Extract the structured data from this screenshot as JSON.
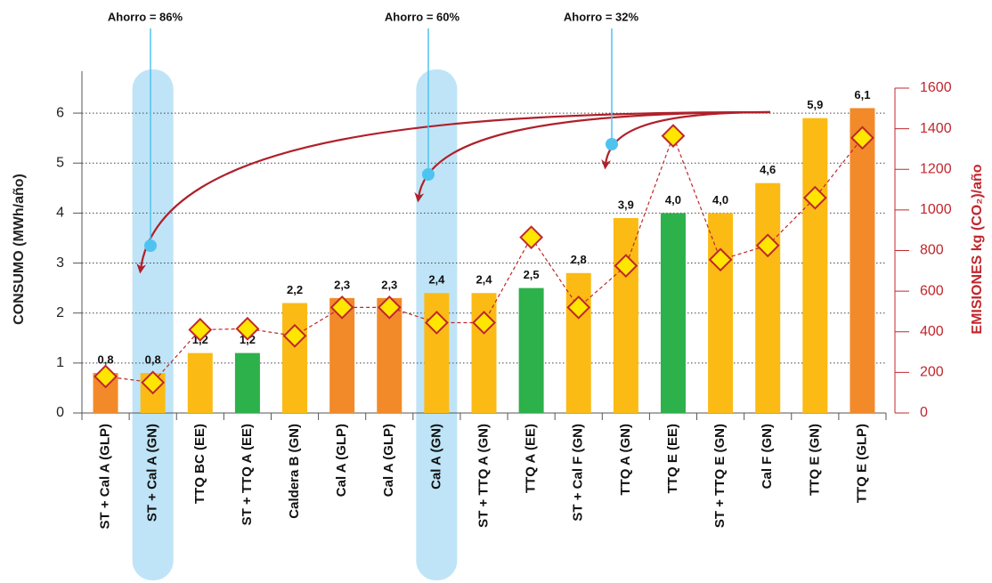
{
  "chart_data": {
    "type": "bar",
    "y_label": "CONSUMO (MWh/año)",
    "y2_label": "EMISIONES kg (CO₂)/año",
    "annotations": [
      "Ahorro = 86%",
      "Ahorro = 60%",
      "Ahorro = 32%"
    ],
    "categories": [
      "ST + Cal A (GLP)",
      "ST + Cal A (GN)",
      "TTQ BC (EE)",
      "ST + TTQ A (EE)",
      "Caldera B (GN)",
      "Cal A (GLP)",
      "Cal A (GLP)",
      "Cal A (GN)",
      "ST + TTQ A (GN)",
      "TTQ A (EE)",
      "ST + Cal F (GN)",
      "TTQ A (GN)",
      "TTQ E (EE)",
      "ST + TTQ E (GN)",
      "Cal F (GN)",
      "TTQ E (GN)",
      "TTQ E (GLP)"
    ],
    "series": [
      {
        "type": "bar",
        "values": [
          0.8,
          0.8,
          1.2,
          1.2,
          2.2,
          2.3,
          2.3,
          2.4,
          2.4,
          2.5,
          2.8,
          3.9,
          4.0,
          4.0,
          4.6,
          5.9,
          6.1
        ],
        "value_labels": [
          "0,8",
          "0,8",
          "1,2",
          "1,2",
          "2,2",
          "2,3",
          "2,3",
          "2,4",
          "2,4",
          "2,5",
          "2,8",
          "3,9",
          "4,0",
          "4,0",
          "4,6",
          "5,9",
          "6,1"
        ],
        "colors": [
          "#f28a2a",
          "#fbbb14",
          "#fbbb14",
          "#2db14b",
          "#fbbb14",
          "#f28a2a",
          "#f28a2a",
          "#fbbb14",
          "#fbbb14",
          "#2db14b",
          "#fbbb14",
          "#fbbb14",
          "#2db14b",
          "#fbbb14",
          "#fbbb14",
          "#fbbb14",
          "#f28a2a"
        ]
      },
      {
        "type": "line",
        "axis": "y2",
        "color": "#c0272d",
        "marker_color": "#ffe600",
        "values": [
          180,
          150,
          410,
          415,
          380,
          520,
          520,
          445,
          445,
          865,
          520,
          725,
          1365,
          755,
          825,
          1060,
          1355
        ]
      }
    ],
    "highlight": [
      1,
      7
    ],
    "ylim": [
      0,
      6.5
    ],
    "yticks": [
      0,
      1,
      2,
      3,
      4,
      5,
      6
    ],
    "y2lim": [
      0,
      1600
    ],
    "y2ticks": [
      0,
      200,
      400,
      600,
      800,
      1000,
      1200,
      1400,
      1600
    ],
    "grid": true
  }
}
